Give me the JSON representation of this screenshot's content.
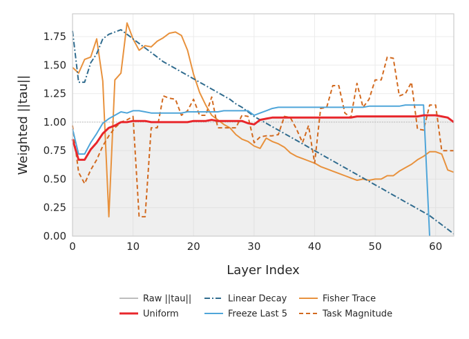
{
  "chart_data": {
    "type": "line",
    "xlabel": "Layer Index",
    "ylabel": "Weighted ||tau||",
    "xlim": [
      0,
      63
    ],
    "ylim": [
      0,
      1.95
    ],
    "xticks": [
      0,
      10,
      20,
      30,
      40,
      50,
      60
    ],
    "yticks": [
      "0.00",
      "0.25",
      "0.50",
      "0.75",
      "1.00",
      "1.25",
      "1.50",
      "1.75"
    ],
    "grid": true,
    "reference_line": 1.0,
    "legend_position": "bottom-center",
    "series": [
      {
        "name": "Raw ||tau||",
        "color": "#bdbdbd",
        "style": "solid",
        "fill": true,
        "x": [
          0,
          1,
          2,
          3,
          4,
          5,
          6,
          7,
          8,
          9,
          10,
          11,
          12,
          13,
          14,
          15,
          16,
          17,
          18,
          19,
          20,
          21,
          22,
          23,
          24,
          25,
          26,
          27,
          28,
          29,
          30,
          31,
          32,
          33,
          34,
          35,
          36,
          37,
          38,
          39,
          40,
          41,
          42,
          43,
          44,
          45,
          46,
          47,
          48,
          49,
          50,
          51,
          52,
          53,
          54,
          55,
          56,
          57,
          58,
          59,
          60,
          61,
          62,
          63
        ],
        "values": [
          0.85,
          0.67,
          0.67,
          0.76,
          0.82,
          0.9,
          0.95,
          0.97,
          1.0,
          1.0,
          1.01,
          1.01,
          1.01,
          1.0,
          1.0,
          1.0,
          1.0,
          1.0,
          1.0,
          1.0,
          1.01,
          1.01,
          1.01,
          1.02,
          1.01,
          1.01,
          1.01,
          1.01,
          1.01,
          0.99,
          0.98,
          1.02,
          1.03,
          1.04,
          1.04,
          1.04,
          1.04,
          1.04,
          1.04,
          1.04,
          1.04,
          1.04,
          1.04,
          1.04,
          1.04,
          1.04,
          1.04,
          1.05,
          1.05,
          1.05,
          1.05,
          1.05,
          1.05,
          1.05,
          1.05,
          1.05,
          1.05,
          1.05,
          1.06,
          1.06,
          1.06,
          1.05,
          1.04,
          1.0
        ]
      },
      {
        "name": "Uniform",
        "color": "#e8262b",
        "style": "solid",
        "x": [
          0,
          1,
          2,
          3,
          4,
          5,
          6,
          7,
          8,
          9,
          10,
          11,
          12,
          13,
          14,
          15,
          16,
          17,
          18,
          19,
          20,
          21,
          22,
          23,
          24,
          25,
          26,
          27,
          28,
          29,
          30,
          31,
          32,
          33,
          34,
          35,
          36,
          37,
          38,
          39,
          40,
          41,
          42,
          43,
          44,
          45,
          46,
          47,
          48,
          49,
          50,
          51,
          52,
          53,
          54,
          55,
          56,
          57,
          58,
          59,
          60,
          61,
          62,
          63
        ],
        "values": [
          0.85,
          0.67,
          0.67,
          0.76,
          0.82,
          0.9,
          0.95,
          0.97,
          1.0,
          1.0,
          1.01,
          1.01,
          1.01,
          1.0,
          1.0,
          1.0,
          1.0,
          1.0,
          1.0,
          1.0,
          1.01,
          1.01,
          1.01,
          1.02,
          1.01,
          1.01,
          1.01,
          1.01,
          1.01,
          0.99,
          0.98,
          1.02,
          1.03,
          1.04,
          1.04,
          1.04,
          1.04,
          1.04,
          1.04,
          1.04,
          1.04,
          1.04,
          1.04,
          1.04,
          1.04,
          1.04,
          1.04,
          1.05,
          1.05,
          1.05,
          1.05,
          1.05,
          1.05,
          1.05,
          1.05,
          1.05,
          1.05,
          1.05,
          1.06,
          1.06,
          1.06,
          1.05,
          1.04,
          1.0
        ]
      },
      {
        "name": "Linear Decay",
        "color": "#2f6b8e",
        "style": "dashdot",
        "x": [
          0,
          1,
          2,
          3,
          4,
          5,
          6,
          7,
          8,
          9,
          10,
          11,
          12,
          13,
          14,
          15,
          16,
          17,
          18,
          19,
          20,
          21,
          22,
          23,
          24,
          25,
          26,
          27,
          28,
          29,
          30,
          31,
          32,
          33,
          34,
          35,
          36,
          37,
          38,
          39,
          40,
          41,
          42,
          43,
          44,
          45,
          46,
          47,
          48,
          49,
          50,
          51,
          52,
          53,
          54,
          55,
          56,
          57,
          58,
          59,
          60,
          61,
          62,
          63
        ],
        "values": [
          1.8,
          1.35,
          1.35,
          1.52,
          1.6,
          1.73,
          1.77,
          1.79,
          1.81,
          1.77,
          1.73,
          1.69,
          1.65,
          1.61,
          1.57,
          1.53,
          1.5,
          1.47,
          1.44,
          1.41,
          1.38,
          1.35,
          1.32,
          1.29,
          1.26,
          1.23,
          1.2,
          1.16,
          1.13,
          1.09,
          1.05,
          1.02,
          0.99,
          0.96,
          0.93,
          0.9,
          0.87,
          0.84,
          0.81,
          0.78,
          0.75,
          0.72,
          0.69,
          0.66,
          0.63,
          0.6,
          0.57,
          0.54,
          0.51,
          0.48,
          0.45,
          0.42,
          0.39,
          0.36,
          0.33,
          0.3,
          0.27,
          0.24,
          0.21,
          0.18,
          0.14,
          0.1,
          0.06,
          0.02
        ]
      },
      {
        "name": "Freeze Last 5",
        "color": "#4ea5d9",
        "style": "solid",
        "x": [
          0,
          1,
          2,
          3,
          4,
          5,
          6,
          7,
          8,
          9,
          10,
          11,
          12,
          13,
          14,
          15,
          16,
          17,
          18,
          19,
          20,
          21,
          22,
          23,
          24,
          25,
          26,
          27,
          28,
          29,
          30,
          31,
          32,
          33,
          34,
          35,
          36,
          37,
          38,
          39,
          40,
          41,
          42,
          43,
          44,
          45,
          46,
          47,
          48,
          49,
          50,
          51,
          52,
          53,
          54,
          55,
          56,
          57,
          58,
          59
        ],
        "values": [
          0.94,
          0.72,
          0.72,
          0.82,
          0.9,
          0.99,
          1.03,
          1.06,
          1.09,
          1.08,
          1.1,
          1.1,
          1.09,
          1.08,
          1.08,
          1.08,
          1.08,
          1.08,
          1.08,
          1.09,
          1.09,
          1.09,
          1.09,
          1.09,
          1.09,
          1.1,
          1.1,
          1.1,
          1.1,
          1.1,
          1.06,
          1.08,
          1.1,
          1.12,
          1.13,
          1.13,
          1.13,
          1.13,
          1.13,
          1.13,
          1.13,
          1.13,
          1.13,
          1.13,
          1.13,
          1.13,
          1.13,
          1.13,
          1.13,
          1.14,
          1.14,
          1.14,
          1.14,
          1.14,
          1.14,
          1.15,
          1.15,
          1.15,
          1.15,
          0.0
        ]
      },
      {
        "name": "Fisher Trace",
        "color": "#e8913c",
        "style": "solid",
        "x": [
          0,
          1,
          2,
          3,
          4,
          5,
          6,
          7,
          8,
          9,
          10,
          11,
          12,
          13,
          14,
          15,
          16,
          17,
          18,
          19,
          20,
          21,
          22,
          23,
          24,
          25,
          26,
          27,
          28,
          29,
          30,
          31,
          32,
          33,
          34,
          35,
          36,
          37,
          38,
          39,
          40,
          41,
          42,
          43,
          44,
          45,
          46,
          47,
          48,
          49,
          50,
          51,
          52,
          53,
          54,
          55,
          56,
          57,
          58,
          59,
          60,
          61,
          62,
          63
        ],
        "values": [
          1.48,
          1.43,
          1.55,
          1.57,
          1.73,
          1.36,
          0.17,
          1.37,
          1.43,
          1.87,
          1.73,
          1.63,
          1.67,
          1.66,
          1.71,
          1.74,
          1.78,
          1.79,
          1.76,
          1.63,
          1.42,
          1.26,
          1.15,
          1.06,
          1.02,
          0.98,
          0.95,
          0.89,
          0.85,
          0.83,
          0.79,
          0.77,
          0.86,
          0.83,
          0.81,
          0.78,
          0.73,
          0.7,
          0.68,
          0.66,
          0.64,
          0.61,
          0.59,
          0.57,
          0.55,
          0.53,
          0.51,
          0.49,
          0.5,
          0.49,
          0.5,
          0.5,
          0.53,
          0.53,
          0.57,
          0.6,
          0.63,
          0.67,
          0.7,
          0.74,
          0.74,
          0.72,
          0.58,
          0.56
        ]
      },
      {
        "name": "Task Magnitude",
        "color": "#d2691e",
        "style": "dashed",
        "x": [
          0,
          1,
          2,
          3,
          4,
          5,
          6,
          7,
          8,
          9,
          10,
          11,
          12,
          13,
          14,
          15,
          16,
          17,
          18,
          19,
          20,
          21,
          22,
          23,
          24,
          25,
          26,
          27,
          28,
          29,
          30,
          31,
          32,
          33,
          34,
          35,
          36,
          37,
          38,
          39,
          40,
          41,
          42,
          43,
          44,
          45,
          46,
          47,
          48,
          49,
          50,
          51,
          52,
          53,
          54,
          55,
          56,
          57,
          58,
          59,
          60,
          61,
          62,
          63
        ],
        "values": [
          0.97,
          0.56,
          0.46,
          0.58,
          0.67,
          0.79,
          0.88,
          0.95,
          1.0,
          1.02,
          1.05,
          0.17,
          0.17,
          0.95,
          0.95,
          1.23,
          1.21,
          1.2,
          1.06,
          1.1,
          1.2,
          1.06,
          1.06,
          1.22,
          0.95,
          0.95,
          0.95,
          0.95,
          1.06,
          1.05,
          0.82,
          0.87,
          0.88,
          0.88,
          0.89,
          1.05,
          1.04,
          0.94,
          0.82,
          0.97,
          0.64,
          1.12,
          1.13,
          1.32,
          1.32,
          1.08,
          1.04,
          1.34,
          1.13,
          1.2,
          1.37,
          1.37,
          1.57,
          1.56,
          1.23,
          1.25,
          1.35,
          0.94,
          0.93,
          1.15,
          1.15,
          0.75,
          0.75,
          0.75
        ]
      }
    ]
  }
}
